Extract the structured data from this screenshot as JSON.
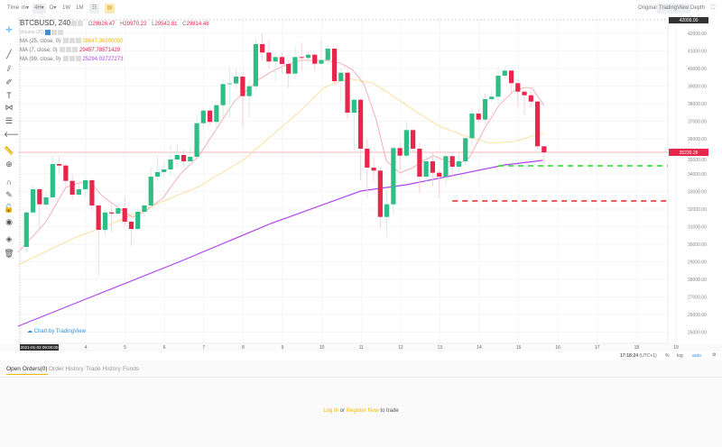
{
  "toolbar": {
    "time": "Time",
    "intervals": [
      "m▾",
      "4H▾",
      "D▾",
      "1W",
      "1M"
    ],
    "active_interval": "4H▾",
    "views": [
      "Original",
      "TradingView",
      "Depth"
    ],
    "active_view": "TradingView"
  },
  "sidebar": {
    "tools": [
      "crosshair-icon",
      "trend-line-icon",
      "multi-line-icon",
      "brush-icon",
      "text-icon",
      "pattern-icon",
      "measure-icon",
      "arrow-left-icon",
      "ruler-icon",
      "zoom-in-icon",
      "magnet-icon",
      "lock-draw-icon",
      "lock-icon",
      "eye-icon",
      "layers-icon",
      "trash-icon"
    ]
  },
  "legend": {
    "symbol": "BTCBUSD, 240",
    "o_label": "O",
    "o": "29826.47",
    "h_label": "H",
    "h": "29970.22",
    "l_label": "L",
    "l": "29542.81",
    "c_label": "C",
    "c": "29814.48",
    "volume": "Volume (20)",
    "ma": [
      {
        "label": "MA (25, close, 0)",
        "value": "28647.98200000",
        "color": "#f4b400"
      },
      {
        "label": "MA (7, close, 0)",
        "value": "29457.78571429",
        "color": "#e8254a"
      },
      {
        "label": "MA (99, close, 0)",
        "value": "25294.02727273",
        "color": "#b043f0"
      }
    ]
  },
  "watermark": "Chart by TradingView",
  "chart_data": {
    "type": "candlestick",
    "symbol": "BTCBUSD",
    "interval": "240",
    "ylim": [
      24600,
      42300
    ],
    "y_ticks": [
      42000,
      41000,
      40000,
      39000,
      38000,
      37000,
      36000,
      35000,
      34000,
      33000,
      32000,
      31000,
      30000,
      29000,
      28000,
      27000,
      26000,
      25000
    ],
    "x_ticks": [
      "4",
      "5",
      "6",
      "7",
      "8",
      "9",
      "10",
      "11",
      "12",
      "13",
      "14",
      "15",
      "16",
      "17",
      "18",
      "19"
    ],
    "crosshair_time": "2021-01-02 09:00:00",
    "high_marker": "42009.00",
    "last_price": "35230.28",
    "last_price_value": 35230,
    "up_color": "#2ebd85",
    "down_color": "#e8254a",
    "candles": [
      [
        29846,
        31900,
        29500,
        31810
      ],
      [
        31810,
        33300,
        31700,
        33129
      ],
      [
        33129,
        33200,
        30900,
        32272
      ],
      [
        32257,
        33000,
        32000,
        32667
      ],
      [
        32667,
        35000,
        32600,
        34564
      ],
      [
        34564,
        35000,
        34000,
        34477
      ],
      [
        34477,
        34600,
        33300,
        33605
      ],
      [
        33605,
        34000,
        32500,
        32821
      ],
      [
        32821,
        33500,
        32700,
        33129
      ],
      [
        33129,
        33700,
        32700,
        33641
      ],
      [
        33641,
        33700,
        31900,
        32206
      ],
      [
        32206,
        32300,
        28200,
        30821
      ],
      [
        30821,
        31900,
        30500,
        31810
      ],
      [
        31810,
        32300,
        30700,
        31744
      ],
      [
        31744,
        32300,
        31700,
        32052
      ],
      [
        32052,
        32700,
        31000,
        31282
      ],
      [
        31282,
        31300,
        29900,
        30872
      ],
      [
        30872,
        32000,
        30800,
        31846
      ],
      [
        31846,
        32300,
        31500,
        32206
      ],
      [
        32206,
        34400,
        32100,
        33846
      ],
      [
        33846,
        35000,
        33600,
        34103
      ],
      [
        34103,
        34600,
        33800,
        34256
      ],
      [
        34256,
        35600,
        33900,
        34821
      ],
      [
        34821,
        35700,
        34300,
        35077
      ],
      [
        35077,
        35400,
        34400,
        34718
      ],
      [
        34718,
        35500,
        34500,
        34974
      ],
      [
        34974,
        37400,
        34800,
        36888
      ],
      [
        36888,
        37700,
        36500,
        37605
      ],
      [
        37605,
        37700,
        36800,
        36960
      ],
      [
        36960,
        38000,
        36500,
        37913
      ],
      [
        37913,
        39400,
        37100,
        39113
      ],
      [
        39113,
        40100,
        37200,
        39146
      ],
      [
        39146,
        40000,
        38900,
        39540
      ],
      [
        39540,
        39800,
        36630,
        38428
      ],
      [
        38428,
        39300,
        37200,
        38990
      ],
      [
        38990,
        41700,
        38800,
        41385
      ],
      [
        41385,
        42009,
        40500,
        40908
      ],
      [
        40908,
        41600,
        40000,
        40395
      ],
      [
        40395,
        40900,
        39300,
        40651
      ],
      [
        40651,
        40900,
        39700,
        40257
      ],
      [
        40257,
        40500,
        38900,
        39708
      ],
      [
        39708,
        41300,
        39400,
        40651
      ],
      [
        40651,
        41500,
        39900,
        40600
      ],
      [
        40600,
        41000,
        40300,
        40785
      ],
      [
        40785,
        40900,
        39900,
        40272
      ],
      [
        40272,
        41600,
        40200,
        40478
      ],
      [
        40478,
        41300,
        40300,
        41128
      ],
      [
        41128,
        41200,
        39100,
        39282
      ],
      [
        39282,
        40000,
        38000,
        39760
      ],
      [
        39760,
        39900,
        37100,
        37487
      ],
      [
        37487,
        38300,
        35350,
        38221
      ],
      [
        38221,
        38300,
        33641,
        35436
      ],
      [
        35436,
        36000,
        32615,
        34359
      ],
      [
        34359,
        35000,
        33500,
        34190
      ],
      [
        34190,
        34400,
        30900,
        31554
      ],
      [
        31554,
        33000,
        30425,
        32272
      ],
      [
        32272,
        35600,
        31700,
        35472
      ],
      [
        35472,
        35800,
        34200,
        35041
      ],
      [
        35041,
        37000,
        34900,
        36497
      ],
      [
        36497,
        36600,
        35200,
        35436
      ],
      [
        35436,
        35800,
        32900,
        33846
      ],
      [
        33846,
        35000,
        33500,
        34718
      ],
      [
        34718,
        35200,
        33300,
        34067
      ],
      [
        34067,
        34200,
        32600,
        33846
      ],
      [
        33846,
        35300,
        33300,
        35010
      ],
      [
        35010,
        35200,
        33900,
        34410
      ],
      [
        34410,
        35200,
        34100,
        34718
      ],
      [
        34718,
        36100,
        34500,
        36036
      ],
      [
        36036,
        37800,
        35600,
        37436
      ],
      [
        37436,
        37700,
        36900,
        37092
      ],
      [
        37092,
        38600,
        36800,
        38256
      ],
      [
        38256,
        38800,
        38100,
        38395
      ],
      [
        38395,
        40100,
        38000,
        39590
      ],
      [
        39590,
        40000,
        39400,
        39882
      ],
      [
        39882,
        39900,
        38600,
        39164
      ],
      [
        39164,
        39400,
        37800,
        38682
      ],
      [
        38682,
        38800,
        37400,
        38477
      ],
      [
        38477,
        38700,
        37800,
        38118
      ],
      [
        38118,
        38200,
        35400,
        35574
      ],
      [
        35574,
        35500,
        34300,
        35230
      ]
    ],
    "ma7": [
      [
        -1.3,
        29539
      ],
      [
        2.9,
        31231
      ],
      [
        6,
        33231
      ],
      [
        8,
        33487
      ],
      [
        9.7,
        33538
      ],
      [
        11.5,
        32769
      ],
      [
        14.3,
        32000
      ],
      [
        16.2,
        31538
      ],
      [
        18,
        31846
      ],
      [
        20.8,
        32615
      ],
      [
        23.5,
        34000
      ],
      [
        26.3,
        35026
      ],
      [
        31.8,
        38154
      ],
      [
        35.5,
        39385
      ],
      [
        37.3,
        39795
      ],
      [
        39.6,
        40205
      ],
      [
        41.8,
        40462
      ],
      [
        45.6,
        40462
      ],
      [
        47.9,
        40308
      ],
      [
        49.7,
        39949
      ],
      [
        51.5,
        39128
      ],
      [
        53.4,
        37077
      ],
      [
        54.9,
        34769
      ],
      [
        57,
        34051
      ],
      [
        59,
        34359
      ],
      [
        60.7,
        34769
      ],
      [
        62.1,
        35026
      ],
      [
        63.9,
        34769
      ],
      [
        65.8,
        34513
      ],
      [
        67.6,
        34923
      ],
      [
        69.9,
        36564
      ],
      [
        72.1,
        37897
      ],
      [
        74.5,
        38769
      ],
      [
        76.3,
        38923
      ],
      [
        77.2,
        38872
      ],
      [
        79,
        37897
      ]
    ],
    "ma25": [
      [
        -1.3,
        28821
      ],
      [
        7,
        30308
      ],
      [
        12.5,
        31077
      ],
      [
        18,
        32000
      ],
      [
        26.3,
        33282
      ],
      [
        33.2,
        34821
      ],
      [
        41.5,
        37487
      ],
      [
        45.5,
        38923
      ],
      [
        49,
        39436
      ],
      [
        52.8,
        39180
      ],
      [
        55.2,
        38615
      ],
      [
        59.3,
        37590
      ],
      [
        63,
        36718
      ],
      [
        66.6,
        36205
      ],
      [
        70.8,
        35744
      ],
      [
        74.5,
        35846
      ],
      [
        77.2,
        36154
      ],
      [
        79,
        36308
      ]
    ],
    "ma99": [
      [
        -1.3,
        25334
      ],
      [
        9.7,
        26975
      ],
      [
        23.5,
        29026
      ],
      [
        37.3,
        31180
      ],
      [
        51,
        33026
      ],
      [
        58,
        33385
      ],
      [
        64.9,
        33897
      ],
      [
        73,
        34513
      ],
      [
        78.8,
        34770
      ]
    ],
    "support_lines": [
      {
        "price": 34462,
        "from_candle": 72,
        "color": "#22dd22"
      },
      {
        "price": 32462,
        "from_candle": 65,
        "color": "#e8252a"
      }
    ]
  },
  "bottom_bar": {
    "time": "17:18:24",
    "tz": "(UTC+1)",
    "pct": "%",
    "log": "log",
    "auto": "auto"
  },
  "tabs": [
    {
      "label": "Open Orders(0)",
      "active": true
    },
    {
      "label": "Order History"
    },
    {
      "label": "Trade History"
    },
    {
      "label": "Funds"
    }
  ],
  "message": {
    "login": "Log In",
    "or": " or ",
    "register": "Register Now",
    "rest": " to trade"
  }
}
